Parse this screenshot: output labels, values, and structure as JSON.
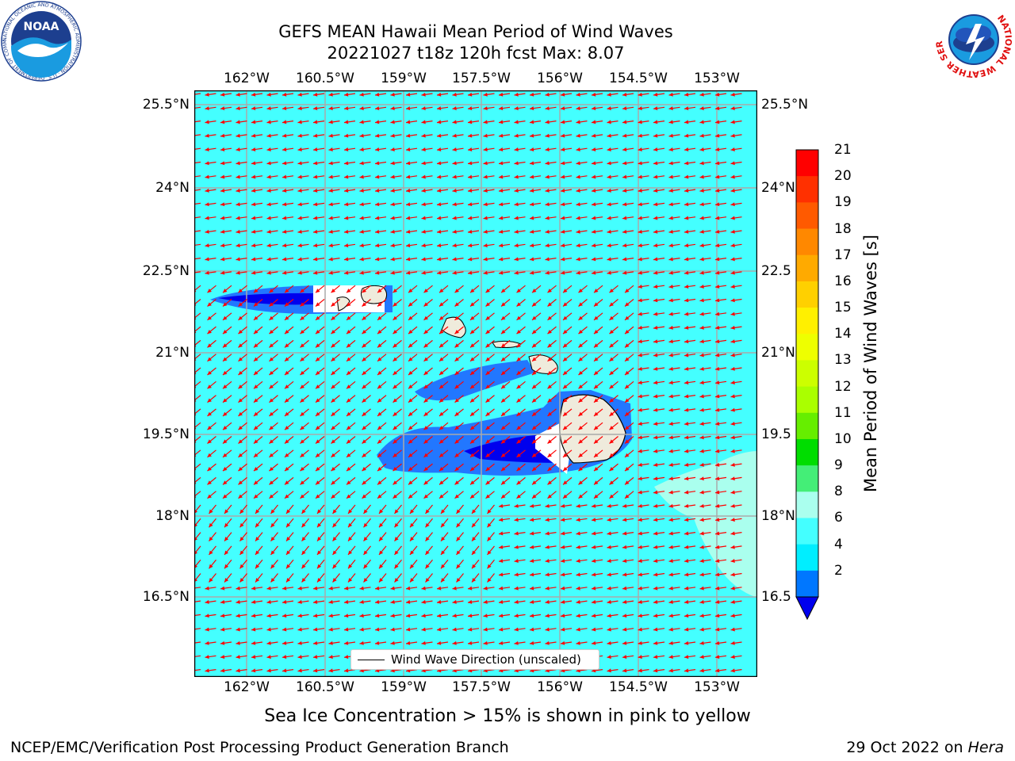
{
  "title": {
    "line1": "GEFS MEAN Hawaii Mean Period of Wind Waves",
    "line2": "20221027 t18z 120h fcst   Max: 8.07"
  },
  "axes": {
    "lon_ticks": [
      "162°W",
      "160.5°W",
      "159°W",
      "157.5°W",
      "156°W",
      "154.5°W",
      "153°W"
    ],
    "lat_ticks": [
      "25.5°N",
      "24°N",
      "22.5°N",
      "21°N",
      "19.5°N",
      "18°N",
      "16.5°N"
    ],
    "lat_ticks_right": [
      "25.5°N",
      "24°N",
      "22.5",
      "21°N",
      "19.5",
      "18°N",
      "16.5"
    ]
  },
  "legend": {
    "label": "Wind Wave Direction (unscaled)"
  },
  "colorbar": {
    "title": "Mean Period of Wind Waves [s]",
    "labels": [
      "21",
      "20",
      "19",
      "18",
      "17",
      "16",
      "15",
      "14",
      "13",
      "12",
      "11",
      "10",
      "9",
      "8",
      "6",
      "4",
      "2"
    ],
    "colors": [
      "#ff0000",
      "#ff3000",
      "#ff5a00",
      "#ff8800",
      "#ffaa00",
      "#ffd000",
      "#fff000",
      "#eeff00",
      "#ccff00",
      "#aaff00",
      "#66ee00",
      "#00dd00",
      "#44ee77",
      "#aaffee",
      "#44ffff",
      "#00eeff",
      "#0077ff"
    ],
    "under_color": "#0000ee"
  },
  "note": "Sea Ice Concentration > 15% is shown in pink to yellow",
  "footer": {
    "left": "NCEP/EMC/Verification Post Processing Product Generation Branch",
    "right_date": "29 Oct 2022 on ",
    "right_host": "Hera"
  },
  "logos": {
    "noaa_text": "NOAA",
    "noaa_ring": "NATIONAL OCEANIC AND ATMOSPHERIC ADMINISTRATION · U.S. DEPARTMENT OF COMMERCE",
    "nws_ring": "NATIONAL WEATHER SERVICE"
  },
  "map_colors": {
    "ocean": "#44ffff",
    "light": "#aaffee",
    "mid_blue": "#2277ff",
    "deep_blue": "#0000ee",
    "land": "#efebdc",
    "arrow": "#ff0000"
  }
}
